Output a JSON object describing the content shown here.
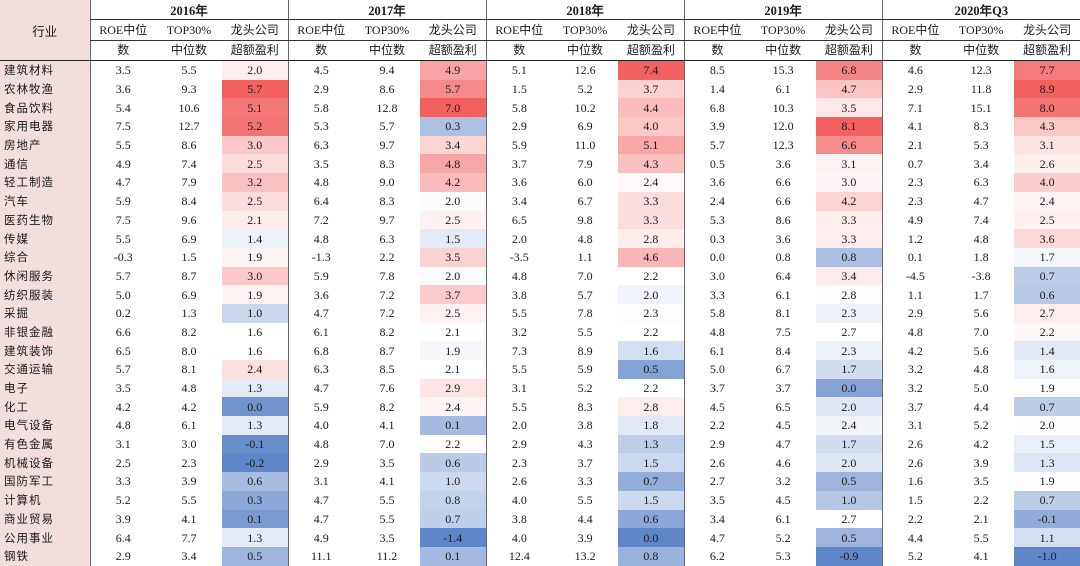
{
  "header": {
    "industry_label": "行业",
    "years": [
      "2016年",
      "2017年",
      "2018年",
      "2019年",
      "2020年Q3"
    ],
    "sub_roe_a": "ROE中位",
    "sub_roe_b": "数",
    "sub_top_a": "TOP30%",
    "sub_top_b": "中位数",
    "sub_ex_a": "龙头公司",
    "sub_ex_b": "超额盈利"
  },
  "colors": {
    "positive": "#f26060",
    "negative": "#5f86c8",
    "industry_bg": "#f3dede"
  },
  "rows": [
    {
      "industry": "建筑材料",
      "v": [
        [
          "3.5",
          "5.5",
          "2.0"
        ],
        [
          "4.5",
          "9.4",
          "4.9"
        ],
        [
          "5.1",
          "12.6",
          "7.4"
        ],
        [
          "8.5",
          "15.3",
          "6.8"
        ],
        [
          "4.6",
          "12.3",
          "7.7"
        ]
      ]
    },
    {
      "industry": "农林牧渔",
      "v": [
        [
          "3.6",
          "9.3",
          "5.7"
        ],
        [
          "2.9",
          "8.6",
          "5.7"
        ],
        [
          "1.5",
          "5.2",
          "3.7"
        ],
        [
          "1.4",
          "6.1",
          "4.7"
        ],
        [
          "2.9",
          "11.8",
          "8.9"
        ]
      ]
    },
    {
      "industry": "食品饮料",
      "v": [
        [
          "5.4",
          "10.6",
          "5.1"
        ],
        [
          "5.8",
          "12.8",
          "7.0"
        ],
        [
          "5.8",
          "10.2",
          "4.4"
        ],
        [
          "6.8",
          "10.3",
          "3.5"
        ],
        [
          "7.1",
          "15.1",
          "8.0"
        ]
      ]
    },
    {
      "industry": "家用电器",
      "v": [
        [
          "7.5",
          "12.7",
          "5.2"
        ],
        [
          "5.3",
          "5.7",
          "0.3"
        ],
        [
          "2.9",
          "6.9",
          "4.0"
        ],
        [
          "3.9",
          "12.0",
          "8.1"
        ],
        [
          "4.1",
          "8.3",
          "4.3"
        ]
      ]
    },
    {
      "industry": "房地产",
      "v": [
        [
          "5.5",
          "8.6",
          "3.0"
        ],
        [
          "6.3",
          "9.7",
          "3.4"
        ],
        [
          "5.9",
          "11.0",
          "5.1"
        ],
        [
          "5.7",
          "12.3",
          "6.6"
        ],
        [
          "2.1",
          "5.3",
          "3.1"
        ]
      ]
    },
    {
      "industry": "通信",
      "v": [
        [
          "4.9",
          "7.4",
          "2.5"
        ],
        [
          "3.5",
          "8.3",
          "4.8"
        ],
        [
          "3.7",
          "7.9",
          "4.3"
        ],
        [
          "0.5",
          "3.6",
          "3.1"
        ],
        [
          "0.7",
          "3.4",
          "2.6"
        ]
      ]
    },
    {
      "industry": "轻工制造",
      "v": [
        [
          "4.7",
          "7.9",
          "3.2"
        ],
        [
          "4.8",
          "9.0",
          "4.2"
        ],
        [
          "3.6",
          "6.0",
          "2.4"
        ],
        [
          "3.6",
          "6.6",
          "3.0"
        ],
        [
          "2.3",
          "6.3",
          "4.0"
        ]
      ]
    },
    {
      "industry": "汽车",
      "v": [
        [
          "5.9",
          "8.4",
          "2.5"
        ],
        [
          "6.4",
          "8.3",
          "2.0"
        ],
        [
          "3.4",
          "6.7",
          "3.3"
        ],
        [
          "2.4",
          "6.6",
          "4.2"
        ],
        [
          "2.3",
          "4.7",
          "2.4"
        ]
      ]
    },
    {
      "industry": "医药生物",
      "v": [
        [
          "7.5",
          "9.6",
          "2.1"
        ],
        [
          "7.2",
          "9.7",
          "2.5"
        ],
        [
          "6.5",
          "9.8",
          "3.3"
        ],
        [
          "5.3",
          "8.6",
          "3.3"
        ],
        [
          "4.9",
          "7.4",
          "2.5"
        ]
      ]
    },
    {
      "industry": "传媒",
      "v": [
        [
          "5.5",
          "6.9",
          "1.4"
        ],
        [
          "4.8",
          "6.3",
          "1.5"
        ],
        [
          "2.0",
          "4.8",
          "2.8"
        ],
        [
          "0.3",
          "3.6",
          "3.3"
        ],
        [
          "1.2",
          "4.8",
          "3.6"
        ]
      ]
    },
    {
      "industry": "综合",
      "v": [
        [
          "-0.3",
          "1.5",
          "1.9"
        ],
        [
          "-1.3",
          "2.2",
          "3.5"
        ],
        [
          "-3.5",
          "1.1",
          "4.6"
        ],
        [
          "0.0",
          "0.8",
          "0.8"
        ],
        [
          "0.1",
          "1.8",
          "1.7"
        ]
      ]
    },
    {
      "industry": "休闲服务",
      "v": [
        [
          "5.7",
          "8.7",
          "3.0"
        ],
        [
          "5.9",
          "7.8",
          "2.0"
        ],
        [
          "4.8",
          "7.0",
          "2.2"
        ],
        [
          "3.0",
          "6.4",
          "3.4"
        ],
        [
          "-4.5",
          "-3.8",
          "0.7"
        ]
      ]
    },
    {
      "industry": "纺织服装",
      "v": [
        [
          "5.0",
          "6.9",
          "1.9"
        ],
        [
          "3.6",
          "7.2",
          "3.7"
        ],
        [
          "3.8",
          "5.7",
          "2.0"
        ],
        [
          "3.3",
          "6.1",
          "2.8"
        ],
        [
          "1.1",
          "1.7",
          "0.6"
        ]
      ]
    },
    {
      "industry": "采掘",
      "v": [
        [
          "0.2",
          "1.3",
          "1.0"
        ],
        [
          "4.7",
          "7.2",
          "2.5"
        ],
        [
          "5.5",
          "7.8",
          "2.3"
        ],
        [
          "5.8",
          "8.1",
          "2.3"
        ],
        [
          "2.9",
          "5.6",
          "2.7"
        ]
      ]
    },
    {
      "industry": "非银金融",
      "v": [
        [
          "6.6",
          "8.2",
          "1.6"
        ],
        [
          "6.1",
          "8.2",
          "2.1"
        ],
        [
          "3.2",
          "5.5",
          "2.2"
        ],
        [
          "4.8",
          "7.5",
          "2.7"
        ],
        [
          "4.8",
          "7.0",
          "2.2"
        ]
      ]
    },
    {
      "industry": "建筑装饰",
      "v": [
        [
          "6.5",
          "8.0",
          "1.6"
        ],
        [
          "6.8",
          "8.7",
          "1.9"
        ],
        [
          "7.3",
          "8.9",
          "1.6"
        ],
        [
          "6.1",
          "8.4",
          "2.3"
        ],
        [
          "4.2",
          "5.6",
          "1.4"
        ]
      ]
    },
    {
      "industry": "交通运输",
      "v": [
        [
          "5.7",
          "8.1",
          "2.4"
        ],
        [
          "6.3",
          "8.5",
          "2.1"
        ],
        [
          "5.5",
          "5.9",
          "0.5"
        ],
        [
          "5.0",
          "6.7",
          "1.7"
        ],
        [
          "3.2",
          "4.8",
          "1.6"
        ]
      ]
    },
    {
      "industry": "电子",
      "v": [
        [
          "3.5",
          "4.8",
          "1.3"
        ],
        [
          "4.7",
          "7.6",
          "2.9"
        ],
        [
          "3.1",
          "5.2",
          "2.2"
        ],
        [
          "3.7",
          "3.7",
          "0.0"
        ],
        [
          "3.2",
          "5.0",
          "1.9"
        ]
      ]
    },
    {
      "industry": "化工",
      "v": [
        [
          "4.2",
          "4.2",
          "0.0"
        ],
        [
          "5.9",
          "8.2",
          "2.4"
        ],
        [
          "5.5",
          "8.3",
          "2.8"
        ],
        [
          "4.5",
          "6.5",
          "2.0"
        ],
        [
          "3.7",
          "4.4",
          "0.7"
        ]
      ]
    },
    {
      "industry": "电气设备",
      "v": [
        [
          "4.8",
          "6.1",
          "1.3"
        ],
        [
          "4.0",
          "4.1",
          "0.1"
        ],
        [
          "2.0",
          "3.8",
          "1.8"
        ],
        [
          "2.2",
          "4.5",
          "2.4"
        ],
        [
          "3.1",
          "5.2",
          "2.0"
        ]
      ]
    },
    {
      "industry": "有色金属",
      "v": [
        [
          "3.1",
          "3.0",
          "-0.1"
        ],
        [
          "4.8",
          "7.0",
          "2.2"
        ],
        [
          "2.9",
          "4.3",
          "1.3"
        ],
        [
          "2.9",
          "4.7",
          "1.7"
        ],
        [
          "2.6",
          "4.2",
          "1.5"
        ]
      ]
    },
    {
      "industry": "机械设备",
      "v": [
        [
          "2.5",
          "2.3",
          "-0.2"
        ],
        [
          "2.9",
          "3.5",
          "0.6"
        ],
        [
          "2.3",
          "3.7",
          "1.5"
        ],
        [
          "2.6",
          "4.6",
          "2.0"
        ],
        [
          "2.6",
          "3.9",
          "1.3"
        ]
      ]
    },
    {
      "industry": "国防军工",
      "v": [
        [
          "3.3",
          "3.9",
          "0.6"
        ],
        [
          "3.1",
          "4.1",
          "1.0"
        ],
        [
          "2.6",
          "3.3",
          "0.7"
        ],
        [
          "2.7",
          "3.2",
          "0.5"
        ],
        [
          "1.6",
          "3.5",
          "1.9"
        ]
      ]
    },
    {
      "industry": "计算机",
      "v": [
        [
          "5.2",
          "5.5",
          "0.3"
        ],
        [
          "4.7",
          "5.5",
          "0.8"
        ],
        [
          "4.0",
          "5.5",
          "1.5"
        ],
        [
          "3.5",
          "4.5",
          "1.0"
        ],
        [
          "1.5",
          "2.2",
          "0.7"
        ]
      ]
    },
    {
      "industry": "商业贸易",
      "v": [
        [
          "3.9",
          "4.1",
          "0.1"
        ],
        [
          "4.7",
          "5.5",
          "0.7"
        ],
        [
          "3.8",
          "4.4",
          "0.6"
        ],
        [
          "3.4",
          "6.1",
          "2.7"
        ],
        [
          "2.2",
          "2.1",
          "-0.1"
        ]
      ]
    },
    {
      "industry": "公用事业",
      "v": [
        [
          "6.4",
          "7.7",
          "1.3"
        ],
        [
          "4.9",
          "3.5",
          "-1.4"
        ],
        [
          "4.0",
          "3.9",
          "0.0"
        ],
        [
          "4.7",
          "5.2",
          "0.5"
        ],
        [
          "4.4",
          "5.5",
          "1.1"
        ]
      ]
    },
    {
      "industry": "钢铁",
      "v": [
        [
          "2.9",
          "3.4",
          "0.5"
        ],
        [
          "11.1",
          "11.2",
          "0.1"
        ],
        [
          "12.4",
          "13.2",
          "0.8"
        ],
        [
          "6.2",
          "5.3",
          "-0.9"
        ],
        [
          "5.2",
          "4.1",
          "-1.0"
        ]
      ]
    }
  ]
}
